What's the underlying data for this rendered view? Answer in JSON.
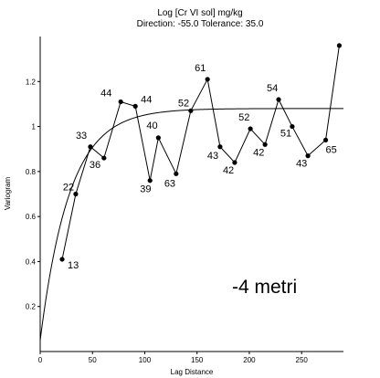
{
  "chart_data": {
    "type": "line",
    "title": "Log [Cr VI sol] mg/kg",
    "subtitle": "Direction: -55.0   Tolerance: 35.0",
    "xlabel": "Lag Distance",
    "ylabel": "Variogram",
    "xlim": [
      0,
      290
    ],
    "ylim": [
      0,
      1.4
    ],
    "x_ticks": [
      0,
      50,
      100,
      150,
      200,
      250
    ],
    "y_ticks": [
      0.2,
      0.4,
      0.6,
      0.8,
      1.0,
      1.2
    ],
    "x_tick_labels": [
      "0",
      "50",
      "100",
      "150",
      "200",
      "250"
    ],
    "y_tick_labels": [
      "0.2",
      "0.4",
      "0.6",
      "0.8",
      "1",
      "1.2"
    ],
    "series": [
      {
        "kind": "experimental",
        "x": [
          21,
          34,
          48,
          61,
          77,
          91,
          105,
          113,
          130,
          144,
          160,
          172,
          186,
          201,
          215,
          228,
          241,
          256,
          273,
          286
        ],
        "y": [
          0.41,
          0.7,
          0.91,
          0.86,
          1.11,
          1.09,
          0.76,
          0.95,
          0.79,
          1.07,
          1.21,
          0.91,
          0.84,
          0.99,
          0.92,
          1.12,
          1.0,
          0.87,
          0.94,
          1.36
        ],
        "labels": [
          "13",
          "22",
          "33",
          "36",
          "44",
          "44",
          "39",
          "40",
          "63",
          "52",
          "61",
          "43",
          "42",
          "52",
          "42",
          "54",
          "51",
          "43",
          "65",
          ""
        ]
      },
      {
        "kind": "model",
        "model": "exponential",
        "nugget": 0.05,
        "sill": 1.08,
        "range_param": 28
      }
    ],
    "annotations": [
      "-4 metri"
    ],
    "grid": false,
    "legend": "none"
  }
}
